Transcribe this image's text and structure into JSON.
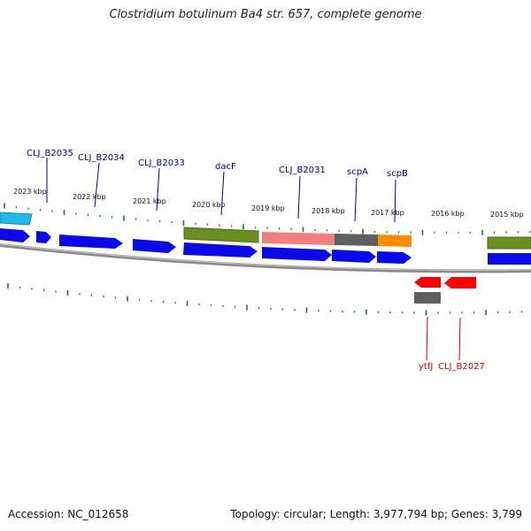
{
  "title": "Clostridium botulinum Ba4 str. 657, complete genome",
  "footer": {
    "accession": "Accession: NC_012658",
    "summary": "Topology: circular; Length: 3,977,794 bp; Genes: 3,799"
  },
  "colors": {
    "cds": "#0a0ae6",
    "cds_reverse": "#ff0000",
    "backbone": "#8a8a8a",
    "tick": "#1e7d1e",
    "label_forward": "#00008b",
    "label_reverse": "#cc0000",
    "olive": "#6b8e23",
    "pink": "#f08080",
    "grey": "#5f5f5f",
    "orange": "#ff8c00",
    "cyan": "#22b8e8"
  },
  "kbp_labels": [
    "2023 kbp",
    "2022 kbp",
    "2021 kbp",
    "2020 kbp",
    "2019 kbp",
    "2018 kbp",
    "2017 kbp",
    "2016 kbp",
    "2015 kbp"
  ],
  "gene_labels_top": [
    "CLJ_B2035",
    "CLJ_B2034",
    "CLJ_B2033",
    "dacF",
    "CLJ_B2031",
    "scpA",
    "scpB"
  ],
  "gene_labels_bottom": [
    "ytfJ",
    "CLJ_B2027"
  ]
}
